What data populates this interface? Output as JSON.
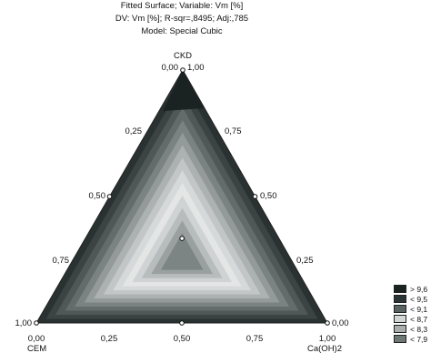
{
  "title_lines": [
    "Fitted Surface; Variable: Vm [%]",
    "DV: Vm [%]; R-sqr=,8495; Adj:,785",
    "Model: Special Cubic"
  ],
  "chart_data": {
    "type": "ternary-contour",
    "vertices": {
      "top": "CKD",
      "left": "CEM",
      "right": "Ca(OH)2"
    },
    "top_vertex_values": {
      "left": "0,00",
      "right": "1,00"
    },
    "left_axis_ticks": [
      "0,25",
      "0,50",
      "0,75",
      "1,00"
    ],
    "right_axis_ticks": [
      "0,75",
      "0,50",
      "0,25",
      "0,00"
    ],
    "bottom_axis_ticks": [
      "0,00",
      "0,25",
      "0,50",
      "0,75",
      "1,00"
    ],
    "legend": [
      {
        "label": "> 9,6",
        "color": "#1b2222"
      },
      {
        "label": "< 9,5",
        "color": "#2c3535"
      },
      {
        "label": "< 9,1",
        "color": "#5a6262"
      },
      {
        "label": "< 8,7",
        "color": "#d2d6d6"
      },
      {
        "label": "< 8,3",
        "color": "#a9afaf"
      },
      {
        "label": "< 7,9",
        "color": "#6f7777"
      }
    ],
    "design_points": [
      {
        "cem": 1.0,
        "cah": 0.0,
        "ckd": 0.0
      },
      {
        "cem": 0.0,
        "cah": 1.0,
        "ckd": 0.0
      },
      {
        "cem": 0.0,
        "cah": 0.0,
        "ckd": 1.0
      },
      {
        "cem": 0.5,
        "cah": 0.5,
        "ckd": 0.0
      },
      {
        "cem": 0.5,
        "cah": 0.0,
        "ckd": 0.5
      },
      {
        "cem": 0.0,
        "cah": 0.5,
        "ckd": 0.5
      },
      {
        "cem": 0.333,
        "cah": 0.333,
        "ckd": 0.333
      }
    ]
  }
}
